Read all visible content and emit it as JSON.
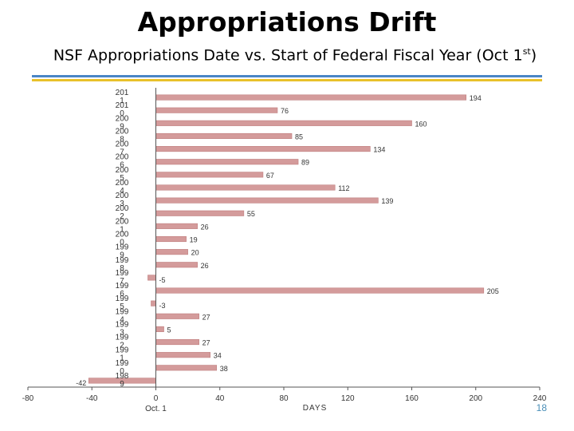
{
  "title": "Appropriations Drift",
  "subtitle": {
    "text": "NSF Appropriations Date vs. Start of Federal Fiscal Year (Oct 1",
    "superscript": "st",
    "close": ")"
  },
  "page_number": "18",
  "colors": {
    "bar": "#d49b9b",
    "bar_edge": "#c07f7f",
    "axis": "#555555",
    "text": "#333333",
    "rule_blue": "#4a86c5",
    "rule_yellow": "#e8c12a"
  },
  "chart_data": {
    "type": "bar",
    "orientation": "horizontal",
    "categories": [
      "2011",
      "2010",
      "2009",
      "2008",
      "2007",
      "2006",
      "2005",
      "2004",
      "2003",
      "2002",
      "2001",
      "2000",
      "1999",
      "1998",
      "1997",
      "1996",
      "1995",
      "1994",
      "1993",
      "1992",
      "1991",
      "1990",
      "1989"
    ],
    "category_labels_shown": [
      "201\n1",
      "201\n0",
      "200\n9",
      "200\n8",
      "200\n7",
      "200\n6",
      "200\n5",
      "200\n4",
      "200\n3",
      "200\n2",
      "200\n1",
      "200\n0",
      "199\n9",
      "199\n8",
      "199\n7",
      "199\n6",
      "199\n5",
      "199\n4",
      "199\n3",
      "199\n2",
      "199\n1",
      "199\n0",
      "198\n9"
    ],
    "values": [
      194,
      76,
      160,
      85,
      134,
      89,
      67,
      112,
      139,
      55,
      26,
      19,
      20,
      26,
      -5,
      205,
      -3,
      27,
      5,
      27,
      34,
      38,
      -42
    ],
    "data_labels": [
      "194",
      "76",
      "160",
      "85",
      "134",
      "89",
      "67",
      "112",
      "139",
      "55",
      "26",
      "19",
      "20",
      "26",
      "-5",
      "205",
      "-3",
      "27",
      "5",
      "27",
      "34",
      "38",
      "-42"
    ],
    "xlim": [
      -80,
      240
    ],
    "xticks": [
      -80,
      -40,
      0,
      40,
      80,
      120,
      160,
      200,
      240
    ],
    "tick_labels": [
      "-80",
      "-40",
      "0",
      "40",
      "80",
      "120",
      "160",
      "200",
      "240"
    ],
    "zero_sublabel": "Oct. 1",
    "xlabel": "DAYS",
    "ylabel": "",
    "grid": false,
    "legend": "none"
  }
}
